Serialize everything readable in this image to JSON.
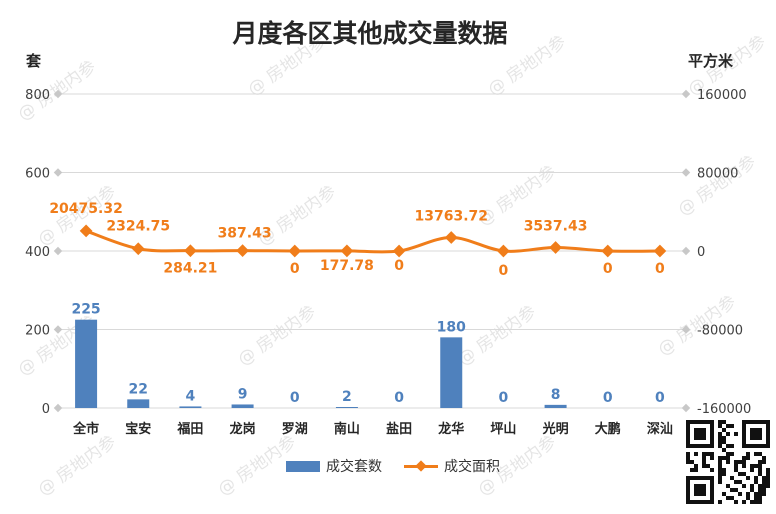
{
  "chart_data": {
    "type": "bar+line",
    "title": "月度各区其他成交量数据",
    "y_left_unit": "套",
    "y_right_unit": "平方米",
    "categories": [
      "全市",
      "宝安",
      "福田",
      "龙岗",
      "罗湖",
      "南山",
      "盐田",
      "龙华",
      "坪山",
      "光明",
      "大鹏",
      "深汕"
    ],
    "y_left_ticks": [
      "0",
      "200",
      "400",
      "600",
      "800"
    ],
    "y_right_ticks": [
      "-160000",
      "-80000",
      "0",
      "80000",
      "160000"
    ],
    "y_left_range": [
      0,
      800
    ],
    "y_right_range": [
      -160000,
      160000
    ],
    "grid": true,
    "legend_position": "bottom",
    "series": [
      {
        "name": "成交套数",
        "type": "bar",
        "axis": "left",
        "color": "#4f81bd",
        "values": [
          225,
          22,
          4,
          9,
          0,
          2,
          0,
          180,
          0,
          8,
          0,
          0
        ],
        "labels": [
          "225",
          "22",
          "4",
          "9",
          "0",
          "2",
          "0",
          "180",
          "0",
          "8",
          "0",
          "0"
        ]
      },
      {
        "name": "成交面积",
        "type": "line",
        "axis": "right",
        "color": "#f07d1a",
        "values": [
          20475.32,
          2324.75,
          284.21,
          387.43,
          0,
          177.78,
          0,
          13763.72,
          0,
          3537.43,
          0,
          0
        ],
        "labels": [
          "20475.32",
          "2324.75",
          "284.21",
          "387.43",
          "0",
          "177.78",
          "0",
          "13763.72",
          "0",
          "3537.43",
          "0",
          "0"
        ]
      }
    ],
    "watermark": "@ 房地内参"
  }
}
